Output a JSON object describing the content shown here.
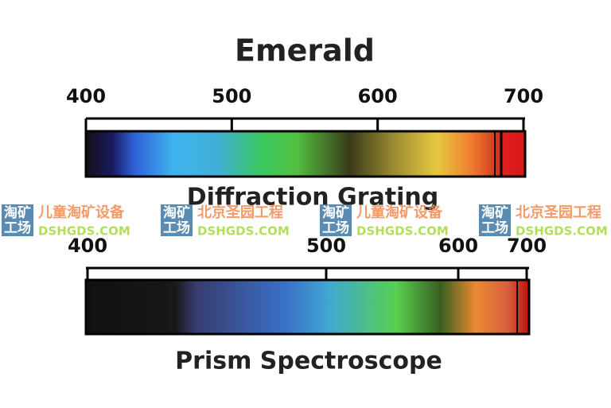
{
  "title": "Emerald",
  "spectra": [
    {
      "label": "Diffraction Grating",
      "ticks": [
        400,
        500,
        600,
        700
      ]
    },
    {
      "label": "Prism Spectroscope",
      "ticks": [
        400,
        500,
        600,
        700
      ]
    }
  ],
  "watermarks": [
    {
      "logo": [
        "淘矿",
        "工场"
      ],
      "text": "儿童淘矿设备",
      "url": "DSHGDS.COM"
    },
    {
      "logo": [
        "淘矿",
        "工场"
      ],
      "text": "北京圣园工程",
      "url": "DSHGDS.COM"
    },
    {
      "logo": [
        "淘矿",
        "工场"
      ],
      "text": "儿童淘矿设备",
      "url": "DSHGDS.COM"
    },
    {
      "logo": [
        "淘矿",
        "工场"
      ],
      "text": "北京圣园工程",
      "url": "DSHGDS.COM"
    }
  ]
}
